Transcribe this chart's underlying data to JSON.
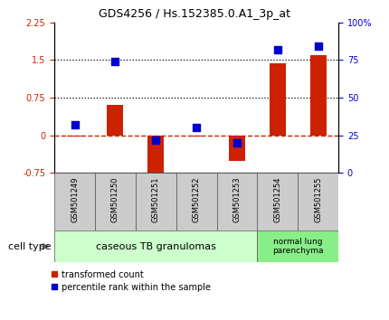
{
  "title": "GDS4256 / Hs.152385.0.A1_3p_at",
  "samples": [
    "GSM501249",
    "GSM501250",
    "GSM501251",
    "GSM501252",
    "GSM501253",
    "GSM501254",
    "GSM501255"
  ],
  "transformed_count": [
    -0.03,
    0.6,
    -0.85,
    -0.03,
    -0.52,
    1.44,
    1.6
  ],
  "percentile_rank": [
    32,
    74,
    22,
    30,
    20,
    82,
    84
  ],
  "ylim_left": [
    -0.75,
    2.25
  ],
  "ylim_right": [
    0,
    100
  ],
  "yticks_left": [
    -0.75,
    0,
    0.75,
    1.5,
    2.25
  ],
  "yticks_right": [
    0,
    25,
    50,
    75,
    100
  ],
  "hlines": [
    1.5,
    0.75
  ],
  "hline_zero": 0,
  "bar_color": "#cc2200",
  "dot_color": "#0000cc",
  "zero_line_color": "#cc2200",
  "bar_width": 0.4,
  "dot_size": 35,
  "group1_label": "caseous TB granulomas",
  "group2_label": "normal lung\nparenchyma",
  "group1_color": "#ccffcc",
  "group2_color": "#88ee88",
  "cell_type_label": "cell type",
  "legend_bar_label": "transformed count",
  "legend_dot_label": "percentile rank within the sample",
  "bg_color": "#ffffff",
  "plot_bg": "#ffffff",
  "tick_color_left": "#cc2200",
  "tick_color_right": "#0000cc",
  "percentile_scale": 0.03,
  "gray_box_color": "#cccccc",
  "title_fontsize": 9,
  "tick_fontsize": 7,
  "sample_fontsize": 6,
  "legend_fontsize": 7,
  "cell_type_fontsize": 8
}
